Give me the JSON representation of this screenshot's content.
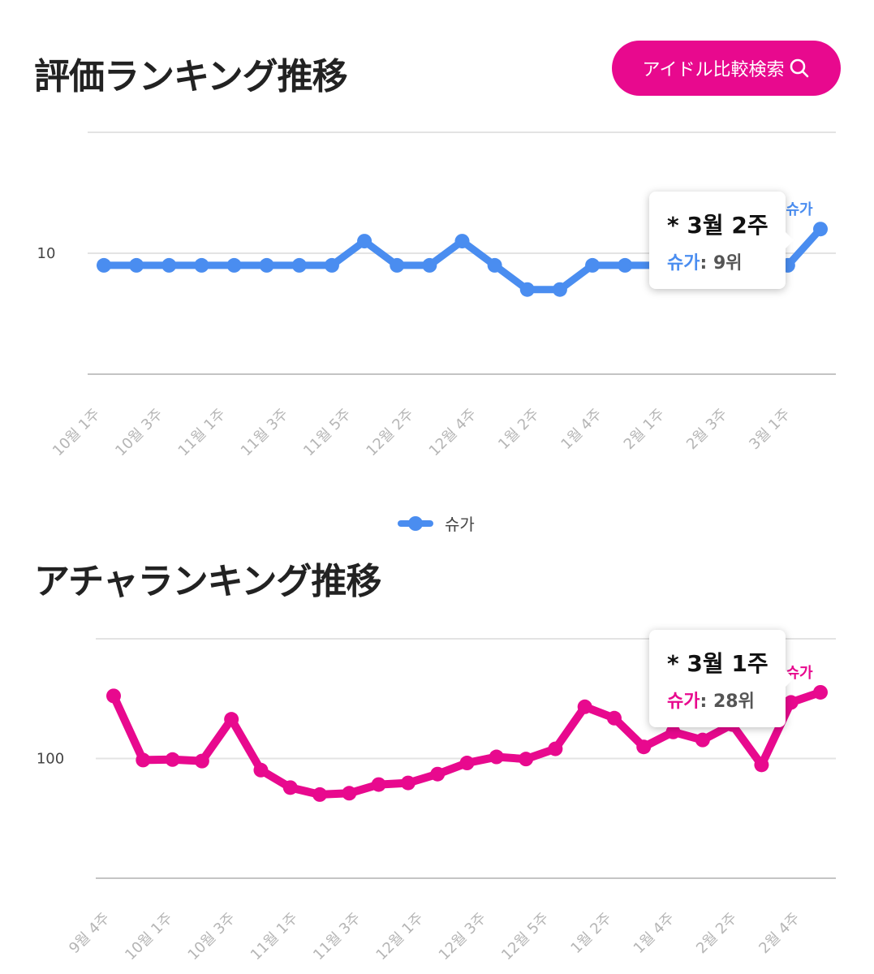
{
  "rating_section": {
    "title": "評価ランキング推移"
  },
  "acha_section": {
    "title": "アチャランキング推移"
  },
  "compare_button": {
    "label": "アイドル比較検索"
  },
  "legend": {
    "label": "슈가",
    "color": "#4a8df0"
  },
  "rating_tooltip": {
    "period": "* 3월 2주",
    "series": "슈가",
    "value": "9위"
  },
  "acha_tooltip": {
    "period": "* 3월 1주",
    "series": "슈가",
    "value": "28위"
  },
  "chart_data": [
    {
      "type": "line",
      "color": "#4a8df0",
      "ytick_labels": [
        "10"
      ],
      "ytick_values": [
        10
      ],
      "ylim": [
        5,
        15
      ],
      "reversed": true,
      "log": false,
      "grid": true,
      "xtick_labels": [
        "10월 1주",
        "10월 3주",
        "11월 1주",
        "11월 3주",
        "11월 5주",
        "12월 2주",
        "12월 4주",
        "1월 2주",
        "1월 4주",
        "2월 1주",
        "2월 3주",
        "3월 1주"
      ],
      "series": [
        {
          "name": "슈가",
          "end_label": "슈가",
          "values": [
            10.5,
            10.5,
            10.5,
            10.5,
            10.5,
            10.5,
            10.5,
            10.5,
            9.5,
            10.5,
            10.5,
            9.5,
            10.5,
            11.5,
            11.5,
            10.5,
            10.5,
            10.5,
            9,
            10,
            10,
            10.5,
            9
          ]
        }
      ]
    },
    {
      "type": "line",
      "color": "#e8098e",
      "ytick_labels": [
        "100"
      ],
      "ytick_values": [
        100
      ],
      "ylim": [
        10,
        1000
      ],
      "reversed": true,
      "log": true,
      "grid": true,
      "xtick_labels": [
        "9월 4주",
        "10월 1주",
        "10월 3주",
        "11월 1주",
        "11월 3주",
        "12월 1주",
        "12월 3주",
        "12월 5주",
        "1월 2주",
        "1월 4주",
        "2월 2주",
        "2월 4주"
      ],
      "series": [
        {
          "name": "슈가",
          "end_label": "슈가",
          "values": [
            30,
            103,
            102,
            105,
            47,
            125,
            175,
            200,
            195,
            165,
            160,
            135,
            109,
            97,
            101,
            83,
            37,
            46,
            80,
            60,
            70,
            52,
            113,
            34,
            28
          ]
        }
      ]
    }
  ]
}
